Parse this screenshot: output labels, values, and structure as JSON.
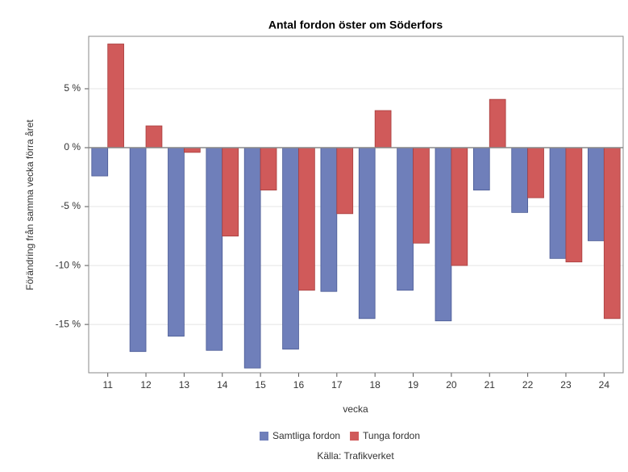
{
  "chart_data": {
    "type": "bar",
    "title": "Antal fordon öster om Söderfors",
    "x_label": "vecka",
    "y_label": "Förändring från samma vecka förra året",
    "source": "Källa: Trafikverket",
    "categories": [
      "11",
      "12",
      "13",
      "14",
      "15",
      "16",
      "17",
      "18",
      "19",
      "20",
      "21",
      "22",
      "23",
      "24"
    ],
    "series": [
      {
        "name": "Samtliga fordon",
        "color": "#6f7fba",
        "values": [
          -2.4,
          -17.3,
          -16.0,
          -17.2,
          -18.7,
          -17.1,
          -12.2,
          -14.5,
          -12.1,
          -14.7,
          -3.6,
          -5.5,
          -9.4,
          -7.9
        ]
      },
      {
        "name": "Tunga fordon",
        "color": "#d05a5a",
        "values": [
          8.8,
          1.85,
          -0.4,
          -7.5,
          -3.6,
          -12.1,
          -5.6,
          3.15,
          -8.1,
          -10.0,
          4.1,
          -4.25,
          -9.7,
          -14.5
        ]
      }
    ],
    "ylim": [
      -19.1,
      9.45
    ],
    "yticks": [
      {
        "value": 5,
        "label": "5 %"
      },
      {
        "value": 0,
        "label": "0 %"
      },
      {
        "value": -5,
        "label": "-5 %"
      },
      {
        "value": -10,
        "label": "-10 %"
      },
      {
        "value": -15,
        "label": "-15 %"
      }
    ],
    "grid": true,
    "legend": "bottom"
  }
}
